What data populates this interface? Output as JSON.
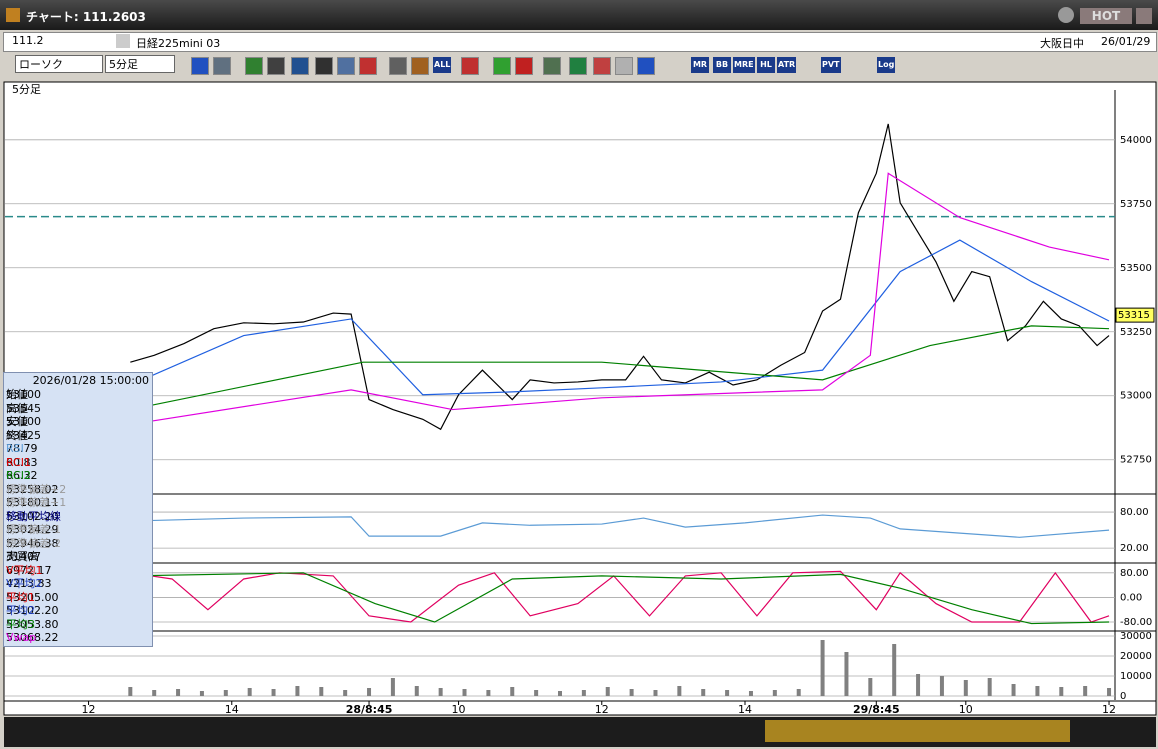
{
  "window": {
    "title": "チャート: 111.2603",
    "hot": "HOT"
  },
  "symbol_bar": {
    "code": "111.2",
    "name": "日経225mini 03",
    "session": "大阪日中",
    "date": "26/01/29"
  },
  "toolbar": {
    "chart_type": "ローソク",
    "interval": "5分足",
    "buttons": [
      "ALL",
      "MR",
      "BB",
      "MRE",
      "HL",
      "ATR",
      "PVT",
      "Log"
    ]
  },
  "info_panel": {
    "datetime": "2026/01/28 15:00:00",
    "rows": [
      {
        "label": "始値",
        "value": "53100",
        "color": "#000000"
      },
      {
        "label": "高値",
        "value": "53545",
        "color": "#000000"
      },
      {
        "label": "安値",
        "value": "53100",
        "color": "#000000"
      },
      {
        "label": "終値",
        "value": "53425",
        "color": "#000000"
      },
      {
        "label": "RSI",
        "value": "78.79",
        "color": "#5b9bd5"
      },
      {
        "label": "RCI1",
        "value": "60.83",
        "color": "#e00000"
      },
      {
        "label": "RCI2",
        "value": "66.32",
        "color": "#008000"
      },
      {
        "label": "標準偏差+2",
        "value": "53258.02",
        "color": "#9a9a9a"
      },
      {
        "label": "標準偏差+1",
        "value": "53180.11",
        "color": "#9a9a9a"
      },
      {
        "label": "移動平均線",
        "value": "53102.20",
        "color": "#000080"
      },
      {
        "label": "標準偏差-1",
        "value": "53024.29",
        "color": "#9a9a9a"
      },
      {
        "label": "標準偏差-2",
        "value": "52946.38",
        "color": "#9a9a9a"
      },
      {
        "label": "売買高",
        "value": "31407",
        "color": "#000000"
      },
      {
        "label": "V平均1",
        "value": "6972.17",
        "color": "#e00000"
      },
      {
        "label": "V平均2",
        "value": "4213.83",
        "color": "#2040c0"
      },
      {
        "label": "平均1",
        "value": "53205.00",
        "color": "#e00000"
      },
      {
        "label": "平均2",
        "value": "53102.20",
        "color": "#2040c0"
      },
      {
        "label": "平均3",
        "value": "53053.80",
        "color": "#008000"
      },
      {
        "label": "Vwap",
        "value": "53068.22",
        "color": "#e000e0"
      }
    ]
  },
  "chart_data": [
    {
      "type": "line",
      "pane_label": "5分足",
      "xlim": [
        0,
        186
      ],
      "ylim": [
        52620,
        54175
      ],
      "yticks": [
        52750,
        53000,
        53250,
        53500,
        53750,
        54000
      ],
      "grid": true,
      "last_price": 53315,
      "ref_line": {
        "value": 53700,
        "color": "#2a8a8a"
      },
      "series": [
        {
          "color": "#000000",
          "x": [
            21,
            25,
            30,
            35,
            40,
            45,
            50,
            55,
            58,
            61,
            65,
            70,
            73,
            76,
            80,
            85,
            88,
            92,
            96,
            100,
            104,
            107,
            110,
            114,
            118,
            122,
            126,
            130,
            134,
            137,
            140,
            143,
            146,
            148,
            150,
            153,
            156,
            159,
            162,
            165,
            168,
            171,
            174,
            177,
            180,
            183,
            185
          ],
          "values": [
            53131,
            53158,
            53204,
            53262,
            53285,
            53281,
            53288,
            53323,
            53319,
            52985,
            52946,
            52908,
            52869,
            53004,
            53100,
            52985,
            53062,
            53050,
            53054,
            53062,
            53062,
            53154,
            53062,
            53050,
            53092,
            53042,
            53062,
            53119,
            53169,
            53331,
            53377,
            53715,
            53869,
            54062,
            53754,
            53638,
            53523,
            53369,
            53485,
            53465,
            53215,
            53273,
            53369,
            53300,
            53273,
            53196,
            53235
          ]
        },
        {
          "color": "#2060e0",
          "x": [
            21,
            40,
            58,
            70,
            85,
            100,
            120,
            137,
            150,
            160,
            172,
            185
          ],
          "values": [
            53042,
            53235,
            53300,
            53004,
            53015,
            53031,
            53054,
            53100,
            53485,
            53608,
            53446,
            53292
          ]
        },
        {
          "color": "#008000",
          "x": [
            21,
            60,
            100,
            137,
            155,
            172,
            185
          ],
          "values": [
            52946,
            53131,
            53131,
            53062,
            53196,
            53273,
            53262
          ]
        },
        {
          "color": "#e000e0",
          "x": [
            21,
            58,
            75,
            100,
            137,
            145,
            148,
            160,
            175,
            185
          ],
          "values": [
            52888,
            53023,
            52946,
            52992,
            53023,
            53158,
            53869,
            53696,
            53581,
            53531
          ]
        }
      ]
    },
    {
      "type": "line",
      "xlim": [
        0,
        186
      ],
      "ylim": [
        -3,
        105
      ],
      "yticks": [
        {
          "value": 80,
          "label": "80.00"
        },
        {
          "value": 20,
          "label": "20.00"
        }
      ],
      "grid": true,
      "series": [
        {
          "color": "#5b9bd5",
          "x": [
            21,
            40,
            58,
            61,
            73,
            80,
            88,
            100,
            107,
            114,
            124,
            137,
            145,
            150,
            160,
            170,
            185
          ],
          "values": [
            65,
            70,
            72,
            40,
            40,
            62,
            58,
            60,
            70,
            55,
            62,
            75,
            70,
            52,
            45,
            38,
            50
          ]
        }
      ]
    },
    {
      "type": "line",
      "xlim": [
        0,
        186
      ],
      "ylim": [
        -106,
        112
      ],
      "yticks": [
        {
          "value": 80,
          "label": "80.00"
        },
        {
          "value": 0,
          "label": "0.00"
        },
        {
          "value": -80,
          "label": "-80.00"
        }
      ],
      "grid": true,
      "series": [
        {
          "color": "#e00060",
          "x": [
            21,
            28,
            34,
            40,
            46,
            55,
            61,
            68,
            76,
            82,
            88,
            96,
            102,
            108,
            114,
            120,
            126,
            132,
            140,
            146,
            150,
            156,
            162,
            170,
            176,
            182,
            185
          ],
          "values": [
            80,
            60,
            -40,
            60,
            80,
            70,
            -60,
            -80,
            40,
            80,
            -60,
            -20,
            70,
            -60,
            70,
            80,
            -60,
            80,
            85,
            -40,
            80,
            -20,
            -80,
            -80,
            80,
            -80,
            -60
          ]
        },
        {
          "color": "#008000",
          "x": [
            21,
            50,
            62,
            72,
            85,
            100,
            120,
            140,
            150,
            162,
            172,
            185
          ],
          "values": [
            70,
            80,
            -20,
            -80,
            60,
            70,
            60,
            75,
            30,
            -40,
            -85,
            -80
          ]
        }
      ]
    },
    {
      "type": "bar",
      "xlim": [
        0,
        186
      ],
      "ylim": [
        -2000,
        32500
      ],
      "yticks": [
        0,
        10000,
        20000,
        30000
      ],
      "grid": true,
      "color": "#808080",
      "xticks": [
        {
          "value": 14,
          "label": "12"
        },
        {
          "value": 38,
          "label": "14"
        },
        {
          "value": 61,
          "label": "28/8:45"
        },
        {
          "value": 76,
          "label": "10"
        },
        {
          "value": 100,
          "label": "12"
        },
        {
          "value": 124,
          "label": "14"
        },
        {
          "value": 146,
          "label": "29/8:45"
        },
        {
          "value": 161,
          "label": "10"
        },
        {
          "value": 185,
          "label": "12"
        }
      ],
      "x": [
        21,
        25,
        29,
        33,
        37,
        41,
        45,
        49,
        53,
        57,
        61,
        65,
        69,
        73,
        77,
        81,
        85,
        89,
        93,
        97,
        101,
        105,
        109,
        113,
        117,
        121,
        125,
        129,
        133,
        137,
        141,
        145,
        149,
        153,
        157,
        161,
        165,
        169,
        173,
        177,
        181,
        185
      ],
      "values": [
        4500,
        3000,
        3500,
        2500,
        3000,
        4000,
        3500,
        5000,
        4500,
        3000,
        4000,
        9000,
        5000,
        4000,
        3500,
        3000,
        4500,
        3000,
        2500,
        3000,
        4500,
        3500,
        3000,
        5000,
        3500,
        3000,
        2500,
        3000,
        3500,
        28000,
        22000,
        9000,
        26000,
        11000,
        10000,
        8000,
        9000,
        6000,
        5000,
        4500,
        5000,
        4000
      ]
    }
  ]
}
